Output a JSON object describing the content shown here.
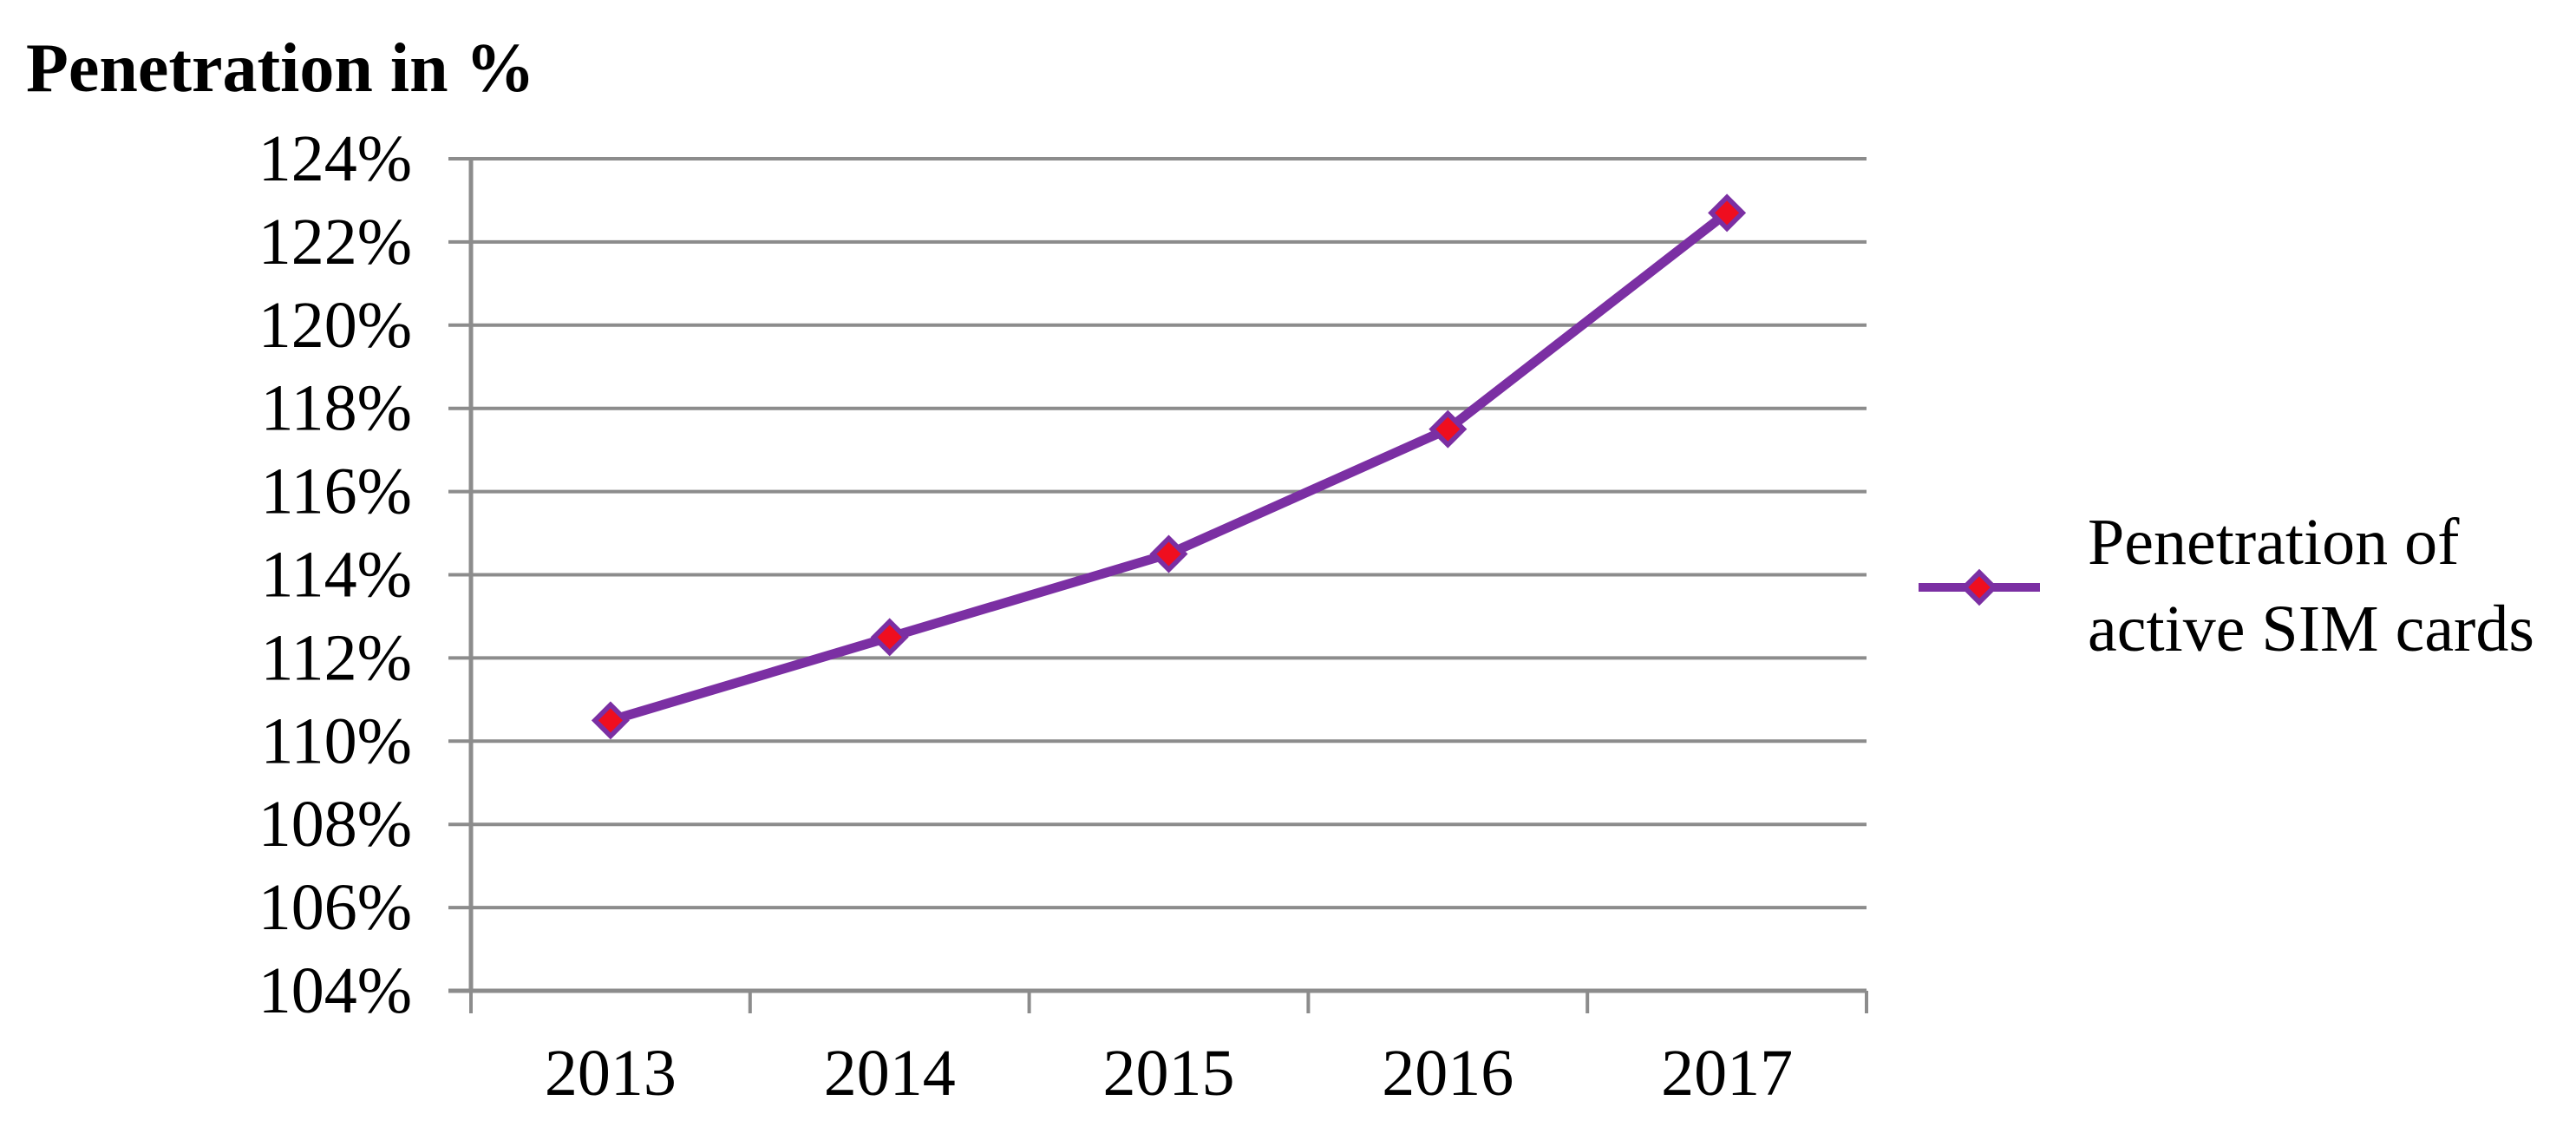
{
  "title": "Penetration in %",
  "chart_data": {
    "type": "line",
    "title": "Penetration in %",
    "categories": [
      "2013",
      "2014",
      "2015",
      "2016",
      "2017"
    ],
    "series": [
      {
        "name": "Penetration of active SIM cards",
        "values": [
          110.5,
          112.5,
          114.5,
          117.5,
          122.7
        ]
      }
    ],
    "xlabel": "",
    "ylabel": "Penetration in %",
    "ylim": [
      104,
      124
    ],
    "ytick_step": 2,
    "ytick_labels": [
      "104%",
      "106%",
      "108%",
      "110%",
      "112%",
      "114%",
      "116%",
      "118%",
      "120%",
      "122%",
      "124%"
    ],
    "grid": true,
    "legend_position": "right",
    "legend_lines": [
      "Penetration of",
      "active SIM cards"
    ],
    "colors": {
      "line": "#7B2FA3",
      "marker_fill": "#EF0E1F",
      "marker_border": "#7B2FA3",
      "grid": "#8C8C8C",
      "axis": "#8C8C8C",
      "text": "#000000"
    }
  }
}
